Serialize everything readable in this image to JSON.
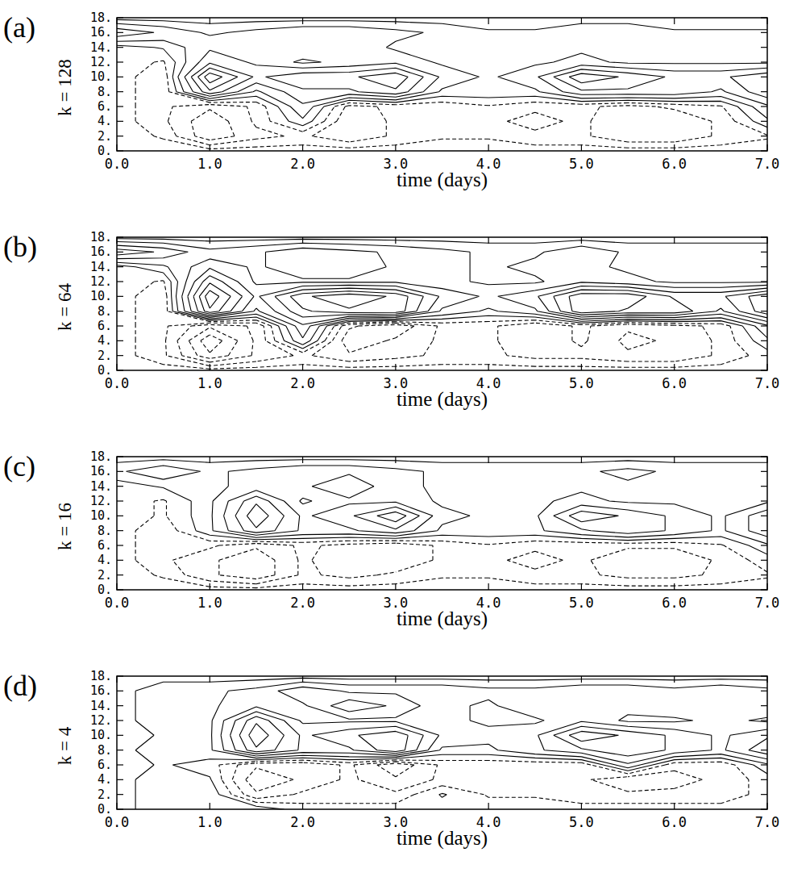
{
  "chart_data": [
    {
      "type": "contour",
      "panel": "(a)",
      "x_label": "time (days)",
      "y_label": "k = 128",
      "xlim": [
        0,
        7
      ],
      "ylim": [
        0,
        18
      ],
      "xticks": [
        {
          "value": 0,
          "label": "0.0"
        },
        {
          "value": 1,
          "label": "1.0"
        },
        {
          "value": 2,
          "label": "2.0"
        },
        {
          "value": 3,
          "label": "3.0"
        },
        {
          "value": 4,
          "label": "4.0"
        },
        {
          "value": 5,
          "label": "5.0"
        },
        {
          "value": 6,
          "label": "6.0"
        },
        {
          "value": 7,
          "label": "7.0"
        }
      ],
      "yticks": [
        {
          "value": 0,
          "label": "0."
        },
        {
          "value": 2,
          "label": "2."
        },
        {
          "value": 4,
          "label": "4."
        },
        {
          "value": 6,
          "label": "6."
        },
        {
          "value": 8,
          "label": "8."
        },
        {
          "value": 10,
          "label": "10."
        },
        {
          "value": 12,
          "label": "12."
        },
        {
          "value": 14,
          "label": "14."
        },
        {
          "value": 16,
          "label": "16."
        },
        {
          "value": 18,
          "label": "18."
        }
      ],
      "levels": [
        -4.2,
        -3.2,
        -2.2,
        -1.2,
        -0.4,
        0.4,
        1.2,
        2.2,
        3.2,
        4.2,
        5.2,
        6.2
      ],
      "x": [
        0,
        0.5,
        1,
        1.5,
        2,
        2.5,
        3,
        3.5,
        4,
        4.5,
        5,
        5.5,
        6,
        6.5,
        7
      ],
      "y": [
        0,
        2,
        4,
        6,
        8,
        10,
        12,
        14,
        16,
        18
      ],
      "z": [
        [
          0,
          0,
          0,
          0,
          0,
          0,
          0,
          0,
          0,
          0,
          0,
          0,
          0,
          0,
          0
        ],
        [
          0,
          -0.5,
          -3,
          -1.5,
          -1,
          -2,
          -1,
          -0.5,
          -0.5,
          -1,
          -1,
          -2,
          -2,
          -1,
          -0.5
        ],
        [
          0,
          -1,
          -3,
          -1,
          1,
          -2,
          -1,
          -1,
          -1,
          -1.5,
          -1,
          -2,
          -2,
          -1,
          1
        ],
        [
          0,
          -1,
          -2,
          -1,
          2,
          -1.5,
          -1,
          -1,
          -0.5,
          -1,
          -1,
          -1.5,
          -1,
          -0.5,
          2
        ],
        [
          0,
          -1,
          4,
          1,
          3,
          3,
          4,
          1,
          1,
          1,
          3,
          3,
          3,
          2,
          4
        ],
        [
          0,
          -1,
          6,
          3,
          4,
          4,
          5,
          2,
          1,
          2,
          5,
          4,
          3,
          3,
          4
        ],
        [
          0,
          -0.5,
          3,
          2,
          1,
          1.5,
          2,
          1,
          1,
          1,
          1.5,
          1,
          1,
          1,
          1
        ],
        [
          0,
          0.5,
          2,
          1.5,
          2,
          2,
          1,
          1,
          1,
          1,
          1,
          1,
          1,
          1,
          1
        ],
        [
          3,
          2,
          1,
          1.5,
          2,
          2,
          1.5,
          1,
          0.5,
          0.5,
          1,
          1,
          0.5,
          0.5,
          0.5
        ],
        [
          0,
          0,
          0,
          0,
          0,
          0,
          0,
          0,
          0,
          0,
          0,
          0,
          0,
          0,
          0
        ]
      ]
    },
    {
      "type": "contour",
      "panel": "(b)",
      "x_label": "time (days)",
      "y_label": "k = 64",
      "xlim": [
        0,
        7
      ],
      "ylim": [
        0,
        18
      ],
      "xticks": [
        {
          "value": 0,
          "label": "0.0"
        },
        {
          "value": 1,
          "label": "1.0"
        },
        {
          "value": 2,
          "label": "2.0"
        },
        {
          "value": 3,
          "label": "3.0"
        },
        {
          "value": 4,
          "label": "4.0"
        },
        {
          "value": 5,
          "label": "5.0"
        },
        {
          "value": 6,
          "label": "6.0"
        },
        {
          "value": 7,
          "label": "7.0"
        }
      ],
      "yticks": [
        {
          "value": 0,
          "label": "0."
        },
        {
          "value": 2,
          "label": "2."
        },
        {
          "value": 4,
          "label": "4."
        },
        {
          "value": 6,
          "label": "6."
        },
        {
          "value": 8,
          "label": "8."
        },
        {
          "value": 10,
          "label": "10."
        },
        {
          "value": 12,
          "label": "12."
        },
        {
          "value": 14,
          "label": "14."
        },
        {
          "value": 16,
          "label": "16."
        },
        {
          "value": 18,
          "label": "18."
        }
      ],
      "levels": [
        -4.2,
        -3.2,
        -2.2,
        -1.2,
        -0.4,
        0.4,
        1.2,
        2.2,
        3.2,
        4.2,
        5.2,
        6.2
      ],
      "x": [
        0,
        0.5,
        1,
        1.5,
        2,
        2.5,
        3,
        3.5,
        4,
        4.5,
        5,
        5.5,
        6,
        6.5,
        7
      ],
      "y": [
        0,
        2,
        4,
        6,
        8,
        10,
        12,
        14,
        16,
        18
      ],
      "z": [
        [
          0,
          0,
          0,
          0,
          0,
          0,
          0,
          0,
          0,
          0,
          0,
          0,
          0,
          0,
          0
        ],
        [
          0,
          -1,
          -4,
          -2,
          -1,
          -2,
          -1.5,
          -1,
          -1,
          -1.5,
          -1.5,
          -2,
          -2,
          -1,
          0
        ],
        [
          0,
          -1,
          -5,
          -2,
          2,
          -3,
          -2,
          -1,
          -1,
          -2,
          -1,
          -2.5,
          -2,
          -1,
          1
        ],
        [
          0,
          -1,
          -3,
          -2,
          3,
          -2,
          -3,
          -1,
          -1,
          -2,
          -1,
          -2,
          -1.5,
          -1,
          2
        ],
        [
          0,
          -1,
          6,
          2,
          5,
          6,
          6,
          2,
          1,
          2,
          6,
          5,
          5,
          3,
          6
        ],
        [
          0,
          -1,
          7,
          3,
          6,
          7,
          6,
          3,
          2,
          3,
          6,
          6,
          4,
          4,
          6
        ],
        [
          0,
          -0.5,
          5,
          2,
          2,
          2,
          2,
          1.5,
          1,
          1,
          2,
          1.5,
          1,
          1,
          1
        ],
        [
          0,
          1,
          3,
          2,
          3,
          3,
          2,
          1.5,
          1,
          1.5,
          1.5,
          1,
          1,
          1,
          1
        ],
        [
          4,
          3,
          1.5,
          2,
          3,
          2.5,
          2,
          1.5,
          1,
          1,
          2,
          1,
          1,
          1,
          1
        ],
        [
          0,
          0,
          0,
          0,
          0,
          0,
          0,
          0,
          0,
          0,
          0,
          0,
          0,
          0,
          0
        ]
      ]
    },
    {
      "type": "contour",
      "panel": "(c)",
      "x_label": "time (days)",
      "y_label": "k = 16",
      "xlim": [
        0,
        7
      ],
      "ylim": [
        0,
        18
      ],
      "xticks": [
        {
          "value": 0,
          "label": "0.0"
        },
        {
          "value": 1,
          "label": "1.0"
        },
        {
          "value": 2,
          "label": "2.0"
        },
        {
          "value": 3,
          "label": "3.0"
        },
        {
          "value": 4,
          "label": "4.0"
        },
        {
          "value": 5,
          "label": "5.0"
        },
        {
          "value": 6,
          "label": "6.0"
        },
        {
          "value": 7,
          "label": "7.0"
        }
      ],
      "yticks": [
        {
          "value": 0,
          "label": "0."
        },
        {
          "value": 2,
          "label": "2."
        },
        {
          "value": 4,
          "label": "4."
        },
        {
          "value": 6,
          "label": "6."
        },
        {
          "value": 8,
          "label": "8."
        },
        {
          "value": 10,
          "label": "10."
        },
        {
          "value": 12,
          "label": "12."
        },
        {
          "value": 14,
          "label": "14."
        },
        {
          "value": 16,
          "label": "16."
        },
        {
          "value": 18,
          "label": "18."
        }
      ],
      "levels": [
        -4.2,
        -3.2,
        -2.2,
        -1.2,
        -0.4,
        0.4,
        1.2,
        2.2,
        3.2,
        4.2,
        5.2,
        6.2
      ],
      "x": [
        0,
        0.5,
        1,
        1.5,
        2,
        2.5,
        3,
        3.5,
        4,
        4.5,
        5,
        5.5,
        6,
        6.5,
        7
      ],
      "y": [
        0,
        2,
        4,
        6,
        8,
        10,
        12,
        14,
        16,
        18
      ],
      "z": [
        [
          0,
          0,
          0,
          0,
          0,
          0,
          0,
          0,
          0,
          0,
          0,
          0,
          0,
          0,
          0
        ],
        [
          0,
          -0.5,
          -2,
          -3,
          -1,
          -1.5,
          -1,
          -0.5,
          -0.5,
          -1,
          -1,
          -1.5,
          -1.5,
          -1,
          -0.5
        ],
        [
          0,
          -1,
          -2,
          -3,
          -1,
          -2,
          -2,
          -1,
          -1,
          -1.5,
          -1,
          -2,
          -2,
          -1,
          0
        ],
        [
          0,
          -1,
          -1,
          -2,
          -1,
          -1.5,
          -2,
          -1,
          -0.5,
          -1,
          -1,
          -1,
          -1,
          -0.5,
          1
        ],
        [
          0,
          -1,
          1,
          4,
          2,
          2,
          3,
          1,
          1,
          1,
          2,
          3,
          2,
          1,
          3
        ],
        [
          0,
          -0.5,
          1,
          5,
          2,
          3,
          5,
          1.5,
          1,
          1,
          4,
          3,
          2,
          1,
          3
        ],
        [
          0,
          -0.5,
          1,
          4,
          1,
          2,
          2,
          1,
          1,
          1,
          1.5,
          1,
          1,
          1,
          1
        ],
        [
          0,
          0.5,
          1,
          1.5,
          2,
          3,
          1.5,
          1,
          1,
          1,
          1,
          1,
          1,
          1,
          1
        ],
        [
          1,
          2,
          1,
          1.5,
          2,
          2,
          1.5,
          1,
          1,
          1,
          1,
          1.5,
          1,
          1,
          1
        ],
        [
          0,
          0,
          0,
          0,
          0,
          0,
          0,
          0,
          0,
          0,
          0,
          0,
          0,
          0,
          0
        ]
      ]
    },
    {
      "type": "contour",
      "panel": "(d)",
      "x_label": "time (days)",
      "y_label": "k = 4",
      "xlim": [
        0,
        7
      ],
      "ylim": [
        0,
        18
      ],
      "xticks": [
        {
          "value": 0,
          "label": "0.0"
        },
        {
          "value": 1,
          "label": "1.0"
        },
        {
          "value": 2,
          "label": "2.0"
        },
        {
          "value": 3,
          "label": "3.0"
        },
        {
          "value": 4,
          "label": "4.0"
        },
        {
          "value": 5,
          "label": "5.0"
        },
        {
          "value": 6,
          "label": "6.0"
        },
        {
          "value": 7,
          "label": "7.0"
        }
      ],
      "yticks": [
        {
          "value": 0,
          "label": "0."
        },
        {
          "value": 2,
          "label": "2."
        },
        {
          "value": 4,
          "label": "4."
        },
        {
          "value": 6,
          "label": "6."
        },
        {
          "value": 8,
          "label": "8."
        },
        {
          "value": 10,
          "label": "10."
        },
        {
          "value": 12,
          "label": "12."
        },
        {
          "value": 14,
          "label": "14."
        },
        {
          "value": 16,
          "label": "16."
        },
        {
          "value": 18,
          "label": "18."
        }
      ],
      "levels": [
        -4.2,
        -3.2,
        -2.2,
        -1.2,
        -0.4,
        0.4,
        1.2,
        2.2,
        3.2,
        4.2,
        5.2,
        6.2
      ],
      "x": [
        0,
        0.5,
        1,
        1.5,
        2,
        2.5,
        3,
        3.5,
        4,
        4.5,
        5,
        5.5,
        6,
        6.5,
        7
      ],
      "y": [
        0,
        2,
        4,
        6,
        8,
        10,
        12,
        14,
        16,
        18
      ],
      "z": [
        [
          0,
          1,
          0.5,
          1,
          0,
          0,
          0,
          0,
          0,
          0,
          0,
          0,
          0,
          0,
          0
        ],
        [
          0,
          1,
          1,
          -2,
          -1,
          -1,
          -1,
          0.5,
          -0.5,
          -0.5,
          -1,
          -1,
          -1,
          -1,
          0
        ],
        [
          0,
          1,
          0.5,
          -3,
          -2,
          -1,
          -2,
          -1,
          -1,
          -1,
          -1,
          -2,
          -1.5,
          -1,
          0
        ],
        [
          0,
          0.5,
          0,
          -2,
          -2,
          -1,
          -3,
          -1,
          -1,
          -1,
          -1,
          2,
          -1,
          -1,
          1
        ],
        [
          0,
          1,
          1,
          5,
          3,
          3,
          5,
          1,
          1,
          2,
          3,
          4,
          3,
          2,
          4
        ],
        [
          0,
          0.5,
          1,
          6,
          3,
          4,
          5,
          2,
          1.5,
          2,
          5,
          4,
          3,
          2,
          3
        ],
        [
          0,
          1,
          1,
          5,
          2,
          2,
          2,
          1.5,
          1,
          1,
          2,
          1,
          1,
          1.5,
          1
        ],
        [
          0,
          1,
          1,
          2,
          2,
          4,
          3,
          1.5,
          1,
          2,
          2,
          1.5,
          2,
          2,
          2
        ],
        [
          0,
          1,
          1,
          1.5,
          3,
          2,
          2,
          2,
          1.5,
          1.5,
          2,
          2,
          1.5,
          2,
          1.5
        ],
        [
          0,
          0,
          0,
          0,
          0,
          0,
          0,
          0,
          0,
          0,
          0,
          0,
          0,
          0,
          0
        ]
      ]
    }
  ]
}
